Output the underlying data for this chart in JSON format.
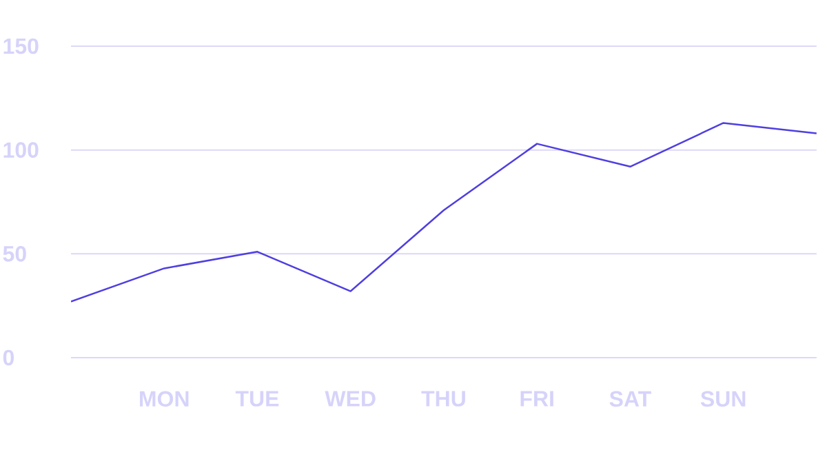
{
  "chart_data": {
    "type": "line",
    "categories": [
      null,
      "MON",
      "TUE",
      "WED",
      "THU",
      "FRI",
      "SAT",
      "SUN",
      null
    ],
    "series": [
      {
        "color": "#4f3fe0",
        "values": [
          27,
          43,
          51,
          32,
          71,
          103,
          92,
          113,
          108
        ]
      }
    ],
    "ylim": [
      0,
      150
    ],
    "yticks": [
      0,
      50,
      100,
      150
    ],
    "grid": "y",
    "marker": "none"
  }
}
